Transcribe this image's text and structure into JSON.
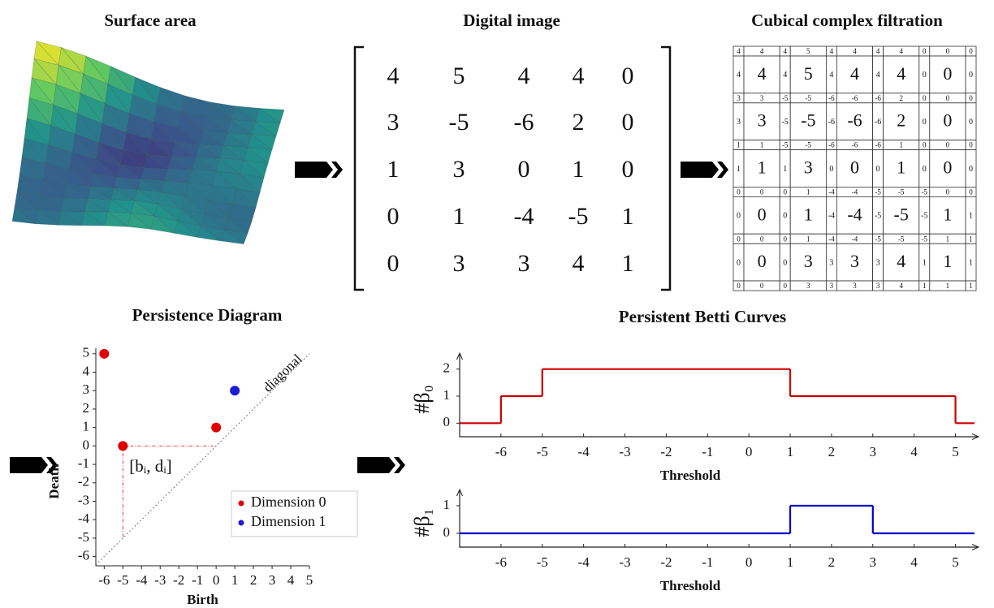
{
  "surface": {
    "title": "Surface area"
  },
  "matrix": {
    "title": "Digital image",
    "rows": [
      [
        4,
        5,
        4,
        4,
        0
      ],
      [
        3,
        -5,
        -6,
        2,
        0
      ],
      [
        1,
        3,
        0,
        1,
        0
      ],
      [
        0,
        1,
        -4,
        -5,
        1
      ],
      [
        0,
        3,
        3,
        4,
        1
      ]
    ]
  },
  "filtration": {
    "title": "Cubical complex filtration",
    "rows": [
      [
        4,
        4,
        4,
        5,
        4,
        4,
        4,
        4,
        0,
        0,
        0
      ],
      [
        4,
        4,
        4,
        5,
        4,
        4,
        4,
        4,
        0,
        0,
        0
      ],
      [
        3,
        3,
        -5,
        -5,
        -6,
        -6,
        -6,
        2,
        0,
        0,
        0
      ],
      [
        3,
        3,
        -5,
        -5,
        -6,
        -6,
        -6,
        2,
        0,
        0,
        0
      ],
      [
        1,
        1,
        -5,
        -5,
        -6,
        -6,
        -6,
        1,
        0,
        0,
        0
      ],
      [
        1,
        1,
        1,
        3,
        0,
        0,
        0,
        1,
        0,
        0,
        0
      ],
      [
        0,
        0,
        0,
        1,
        -4,
        -4,
        -5,
        -5,
        -5,
        0,
        0
      ],
      [
        0,
        0,
        0,
        1,
        -4,
        -4,
        -5,
        -5,
        -5,
        1,
        1
      ],
      [
        0,
        0,
        0,
        1,
        -4,
        -4,
        -5,
        -5,
        -5,
        1,
        1
      ],
      [
        0,
        0,
        0,
        3,
        3,
        3,
        3,
        4,
        1,
        1,
        1
      ],
      [
        0,
        0,
        0,
        3,
        3,
        3,
        3,
        4,
        1,
        1,
        1
      ]
    ]
  },
  "betti_title": "Persistent Betti Curves",
  "chart_data": [
    {
      "type": "scatter",
      "title": "Persistence Diagram",
      "x_label": "Birth",
      "y_label": "Death",
      "xlim": [
        -6.45,
        5
      ],
      "ylim": [
        -6.5,
        5.3
      ],
      "xticks": [
        -6,
        -5,
        -4,
        -3,
        -2,
        -1,
        0,
        1,
        2,
        3,
        4,
        5
      ],
      "yticks": [
        -6,
        -5,
        -4,
        -3,
        -2,
        -1,
        0,
        1,
        2,
        3,
        4,
        5
      ],
      "series": [
        {
          "name": "Dimension 0",
          "color": "#e00000",
          "x": [
            -6,
            -5,
            0
          ],
          "values": [
            5,
            0,
            1
          ]
        },
        {
          "name": "Dimension 1",
          "color": "#1c1cd6",
          "x": [
            1
          ],
          "values": [
            3
          ]
        }
      ],
      "annotations": [
        "[bᵢ, dᵢ]",
        "diagonal"
      ],
      "legend": "lower right"
    },
    {
      "type": "step",
      "x_label": "Threshold",
      "y_label": "#β₀",
      "xlim": [
        -7,
        5.5
      ],
      "ylim": [
        -0.5,
        2.5
      ],
      "xticks": [
        -6,
        -5,
        -4,
        -3,
        -2,
        -1,
        0,
        1,
        2,
        3,
        4,
        5
      ],
      "yticks": [
        0,
        1,
        2
      ],
      "series": [
        {
          "color": "#cc0000",
          "x": [
            -7,
            -6,
            -5,
            1,
            5
          ],
          "values": [
            0,
            1,
            2,
            1,
            0
          ]
        }
      ]
    },
    {
      "type": "step",
      "x_label": "Threshold",
      "y_label": "#β₁",
      "xlim": [
        -7,
        5.5
      ],
      "ylim": [
        -0.5,
        1.5
      ],
      "xticks": [
        -6,
        -5,
        -4,
        -3,
        -2,
        -1,
        0,
        1,
        2,
        3,
        4,
        5
      ],
      "yticks": [
        0,
        1
      ],
      "series": [
        {
          "color": "#0000cc",
          "x": [
            -7,
            1,
            3
          ],
          "values": [
            0,
            1,
            0
          ]
        }
      ]
    }
  ]
}
